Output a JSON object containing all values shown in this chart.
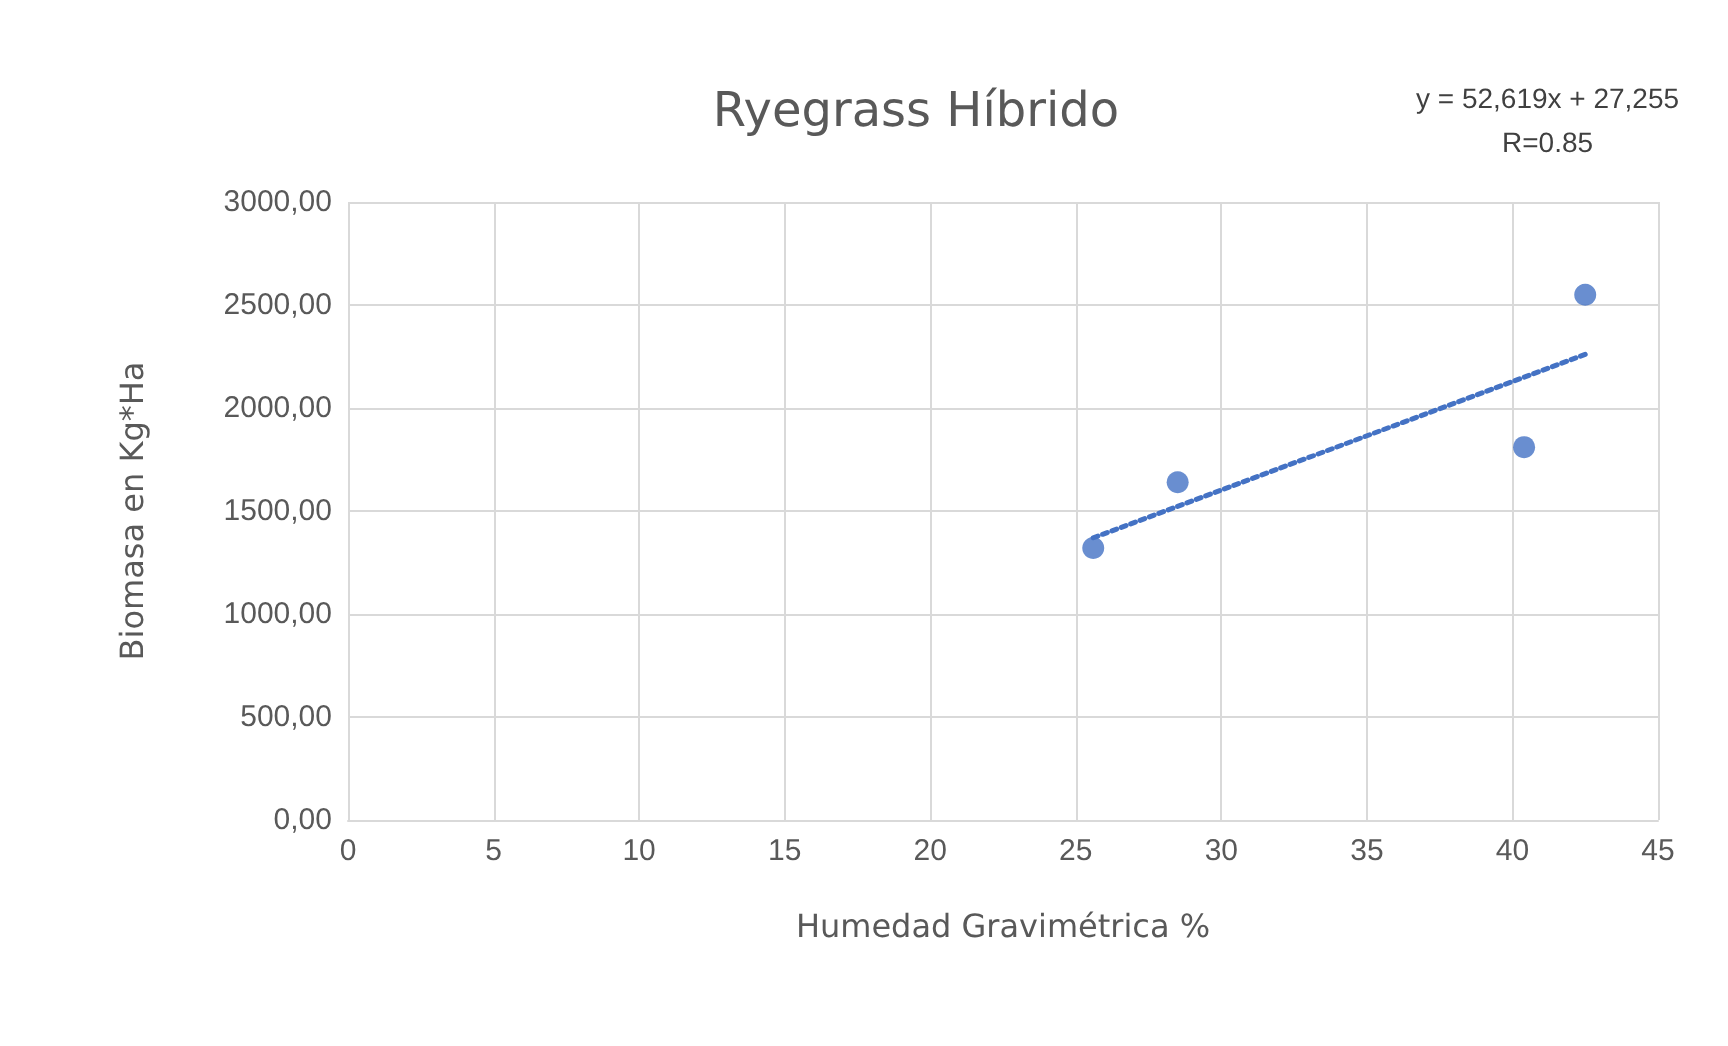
{
  "chart_data": {
    "type": "scatter",
    "title": "Ryegrass Híbrido",
    "xlabel": "Humedad Gravimétrica %",
    "ylabel": "Biomasa en Kg*Ha",
    "annotations": [
      "y = 52,619x + 27,255",
      "R=0.85"
    ],
    "series": [
      {
        "color": "#4472c4",
        "x": [
          25.6,
          28.5,
          40.4,
          42.5
        ],
        "values": [
          1320,
          1640,
          1810,
          2550
        ],
        "marker": "circle"
      },
      {
        "type": "line",
        "color": "#4472c4",
        "x": [
          25.6,
          42.5
        ],
        "values": [
          1370,
          2260
        ],
        "marker": "none",
        "line_style": "dotted"
      }
    ],
    "xlim": [
      0,
      45
    ],
    "xticks": [
      0,
      5,
      10,
      15,
      20,
      25,
      30,
      35,
      40,
      45
    ],
    "ylim": [
      0,
      3000
    ],
    "yticks": [
      {
        "value": 0,
        "label": "0,00"
      },
      {
        "value": 500,
        "label": "500,00"
      },
      {
        "value": 1000,
        "label": "1000,00"
      },
      {
        "value": 1500,
        "label": "1500,00"
      },
      {
        "value": 2000,
        "label": "2000,00"
      },
      {
        "value": 2500,
        "label": "2500,00"
      },
      {
        "value": 3000,
        "label": "3000,00"
      }
    ],
    "grid": true
  }
}
